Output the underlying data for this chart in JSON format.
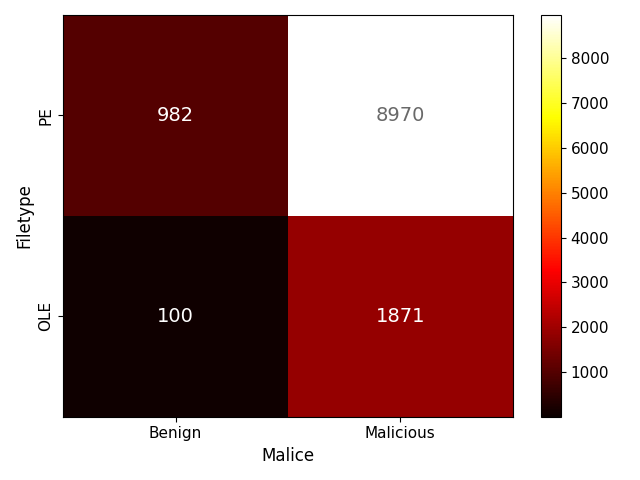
{
  "matrix": [
    [
      982,
      8970
    ],
    [
      100,
      1871
    ]
  ],
  "row_labels": [
    "PE",
    "OLE"
  ],
  "col_labels": [
    "Benign",
    "Malicious"
  ],
  "xlabel": "Malice",
  "ylabel": "Filetype",
  "colormap": "hot",
  "vmin": 0,
  "vmax": 8970,
  "text_color_threshold": 4000,
  "annotation_fontsize": 14,
  "label_fontsize": 12,
  "tick_fontsize": 11,
  "colorbar_ticks": [
    1000,
    2000,
    3000,
    4000,
    5000,
    6000,
    7000,
    8000
  ]
}
